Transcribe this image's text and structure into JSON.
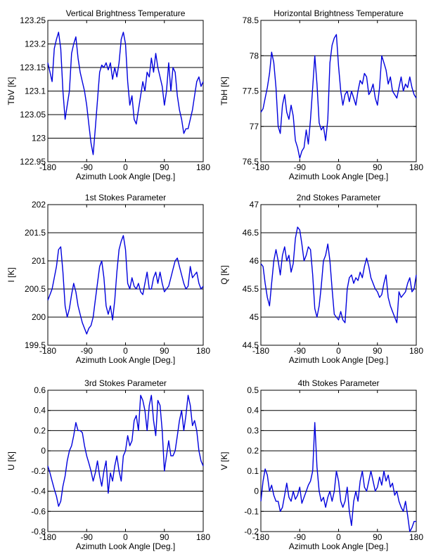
{
  "x_ticks": [
    "-180",
    "-90",
    "0",
    "90",
    "180"
  ],
  "line_color": "#0000dd",
  "chart_data": [
    {
      "type": "line",
      "title": "Vertical Brightness Temperature",
      "xlabel": "Azimuth Look Angle [Deg.]",
      "ylabel": "TbV [K]",
      "xlim": [
        -180,
        180
      ],
      "ylim": [
        122.95,
        123.25
      ],
      "yticks": [
        122.95,
        123,
        123.05,
        123.1,
        123.15,
        123.2,
        123.25
      ],
      "ytick_labels": [
        "122.95",
        "123",
        "123.05",
        "123.1",
        "123.15",
        "123.2",
        "123.25"
      ],
      "grid": "horizontal",
      "x": [
        -180,
        -175,
        -170,
        -165,
        -160,
        -155,
        -150,
        -145,
        -140,
        -135,
        -130,
        -125,
        -120,
        -115,
        -110,
        -105,
        -100,
        -95,
        -90,
        -85,
        -80,
        -75,
        -70,
        -65,
        -60,
        -55,
        -50,
        -45,
        -40,
        -35,
        -30,
        -25,
        -20,
        -15,
        -10,
        -5,
        0,
        5,
        10,
        15,
        20,
        25,
        30,
        35,
        40,
        45,
        50,
        55,
        60,
        65,
        70,
        75,
        80,
        85,
        90,
        95,
        100,
        105,
        110,
        115,
        120,
        125,
        130,
        135,
        140,
        145,
        150,
        155,
        160,
        165,
        170,
        175,
        180
      ],
      "y": [
        123.16,
        123.14,
        123.12,
        123.19,
        123.21,
        123.225,
        123.19,
        123.1,
        123.04,
        123.07,
        123.1,
        123.18,
        123.2,
        123.215,
        123.17,
        123.14,
        123.12,
        123.1,
        123.07,
        123.03,
        122.99,
        122.965,
        123.02,
        123.08,
        123.14,
        123.155,
        123.15,
        123.16,
        123.145,
        123.16,
        123.125,
        123.15,
        123.13,
        123.16,
        123.21,
        123.225,
        123.2,
        123.12,
        123.07,
        123.09,
        123.04,
        123.03,
        123.06,
        123.09,
        123.12,
        123.1,
        123.14,
        123.13,
        123.17,
        123.14,
        123.18,
        123.15,
        123.13,
        123.11,
        123.07,
        123.1,
        123.16,
        123.1,
        123.15,
        123.14,
        123.09,
        123.06,
        123.04,
        123.01,
        123.02,
        123.02,
        123.04,
        123.06,
        123.09,
        123.12,
        123.13,
        123.11,
        123.12
      ],
      "series": [
        {
          "color": "#0000dd"
        }
      ]
    },
    {
      "type": "line",
      "title": "Horizontal Brightness Temperature",
      "xlabel": "Azimuth Look Angle [Deg.]",
      "ylabel": "TbH [K]",
      "xlim": [
        -180,
        180
      ],
      "ylim": [
        76.5,
        78.5
      ],
      "yticks": [
        76.5,
        77,
        77.5,
        78,
        78.5
      ],
      "ytick_labels": [
        "76.5",
        "77",
        "77.5",
        "78",
        "78.5"
      ],
      "grid": "horizontal",
      "x": [
        -180,
        -175,
        -170,
        -165,
        -160,
        -155,
        -150,
        -145,
        -140,
        -135,
        -130,
        -125,
        -120,
        -115,
        -110,
        -105,
        -100,
        -95,
        -90,
        -85,
        -80,
        -75,
        -70,
        -65,
        -60,
        -55,
        -50,
        -45,
        -40,
        -35,
        -30,
        -25,
        -20,
        -15,
        -10,
        -5,
        0,
        5,
        10,
        15,
        20,
        25,
        30,
        35,
        40,
        45,
        50,
        55,
        60,
        65,
        70,
        75,
        80,
        85,
        90,
        95,
        100,
        105,
        110,
        115,
        120,
        125,
        130,
        135,
        140,
        145,
        150,
        155,
        160,
        165,
        170,
        175,
        180
      ],
      "y": [
        77.2,
        77.25,
        77.4,
        77.55,
        77.75,
        78.05,
        77.9,
        77.55,
        77.0,
        76.9,
        77.3,
        77.45,
        77.2,
        77.1,
        77.3,
        77.15,
        76.8,
        76.7,
        76.55,
        76.65,
        76.7,
        76.95,
        76.75,
        77.1,
        77.55,
        78.0,
        77.6,
        77.05,
        76.95,
        77.0,
        76.8,
        77.1,
        77.9,
        78.15,
        78.25,
        78.3,
        77.85,
        77.5,
        77.3,
        77.45,
        77.5,
        77.35,
        77.5,
        77.4,
        77.3,
        77.5,
        77.65,
        77.6,
        77.75,
        77.7,
        77.45,
        77.5,
        77.6,
        77.4,
        77.3,
        77.55,
        78.0,
        77.9,
        77.8,
        77.6,
        77.7,
        77.5,
        77.45,
        77.4,
        77.55,
        77.7,
        77.5,
        77.6,
        77.55,
        77.7,
        77.55,
        77.45,
        77.4
      ],
      "series": [
        {
          "color": "#0000dd"
        }
      ]
    },
    {
      "type": "line",
      "title": "1st Stokes Parameter",
      "xlabel": "Azimuth Look Angle [Deg.]",
      "ylabel": "I [K]",
      "xlim": [
        -180,
        180
      ],
      "ylim": [
        199.5,
        202
      ],
      "yticks": [
        199.5,
        200,
        200.5,
        201,
        201.5,
        202
      ],
      "ytick_labels": [
        "199.5",
        "200",
        "200.5",
        "201",
        "201.5",
        "202"
      ],
      "grid": "horizontal",
      "x": [
        -180,
        -175,
        -170,
        -165,
        -160,
        -155,
        -150,
        -145,
        -140,
        -135,
        -130,
        -125,
        -120,
        -115,
        -110,
        -105,
        -100,
        -95,
        -90,
        -85,
        -80,
        -75,
        -70,
        -65,
        -60,
        -55,
        -50,
        -45,
        -40,
        -35,
        -30,
        -25,
        -20,
        -15,
        -10,
        -5,
        0,
        5,
        10,
        15,
        20,
        25,
        30,
        35,
        40,
        45,
        50,
        55,
        60,
        65,
        70,
        75,
        80,
        85,
        90,
        95,
        100,
        105,
        110,
        115,
        120,
        125,
        130,
        135,
        140,
        145,
        150,
        155,
        160,
        165,
        170,
        175,
        180
      ],
      "y": [
        200.3,
        200.4,
        200.5,
        200.7,
        200.9,
        201.2,
        201.25,
        200.8,
        200.2,
        200.0,
        200.15,
        200.4,
        200.6,
        200.45,
        200.2,
        200.05,
        199.9,
        199.8,
        199.7,
        199.8,
        199.85,
        200.0,
        200.3,
        200.6,
        200.9,
        201.0,
        200.7,
        200.2,
        200.05,
        200.2,
        199.95,
        200.3,
        200.8,
        201.2,
        201.35,
        201.45,
        201.2,
        200.6,
        200.5,
        200.7,
        200.55,
        200.5,
        200.6,
        200.45,
        200.4,
        200.6,
        200.8,
        200.5,
        200.5,
        200.7,
        200.8,
        200.6,
        200.8,
        200.6,
        200.45,
        200.5,
        200.55,
        200.7,
        200.85,
        201.0,
        201.05,
        200.9,
        200.75,
        200.6,
        200.5,
        200.55,
        200.9,
        200.7,
        200.75,
        200.8,
        200.6,
        200.5,
        200.55
      ],
      "series": [
        {
          "color": "#0000dd"
        }
      ]
    },
    {
      "type": "line",
      "title": "2nd Stokes Parameter",
      "xlabel": "Azimuth Look Angle [Deg.]",
      "ylabel": "Q [K]",
      "xlim": [
        -180,
        180
      ],
      "ylim": [
        44.5,
        47
      ],
      "yticks": [
        44.5,
        45,
        45.5,
        46,
        46.5,
        47
      ],
      "ytick_labels": [
        "44.5",
        "45",
        "45.5",
        "46",
        "46.5",
        "47"
      ],
      "grid": "horizontal",
      "x": [
        -180,
        -175,
        -170,
        -165,
        -160,
        -155,
        -150,
        -145,
        -140,
        -135,
        -130,
        -125,
        -120,
        -115,
        -110,
        -105,
        -100,
        -95,
        -90,
        -85,
        -80,
        -75,
        -70,
        -65,
        -60,
        -55,
        -50,
        -45,
        -40,
        -35,
        -30,
        -25,
        -20,
        -15,
        -10,
        -5,
        0,
        5,
        10,
        15,
        20,
        25,
        30,
        35,
        40,
        45,
        50,
        55,
        60,
        65,
        70,
        75,
        80,
        85,
        90,
        95,
        100,
        105,
        110,
        115,
        120,
        125,
        130,
        135,
        140,
        145,
        150,
        155,
        160,
        165,
        170,
        175,
        180
      ],
      "y": [
        45.95,
        45.9,
        45.6,
        45.35,
        45.2,
        45.6,
        46.0,
        46.2,
        46.0,
        45.75,
        46.1,
        46.25,
        46.0,
        46.1,
        45.8,
        45.95,
        46.4,
        46.6,
        46.55,
        46.3,
        46.0,
        46.1,
        46.25,
        46.2,
        45.75,
        45.15,
        45.0,
        45.2,
        45.55,
        46.0,
        46.1,
        46.3,
        46.0,
        45.5,
        45.05,
        45.0,
        44.95,
        45.1,
        44.95,
        44.9,
        45.5,
        45.7,
        45.75,
        45.6,
        45.7,
        45.65,
        45.8,
        45.7,
        45.9,
        46.05,
        45.9,
        45.7,
        45.6,
        45.5,
        45.45,
        45.35,
        45.4,
        45.6,
        45.75,
        45.35,
        45.2,
        45.1,
        45.0,
        44.9,
        45.45,
        45.35,
        45.4,
        45.45,
        45.6,
        45.7,
        45.45,
        45.5,
        45.75
      ],
      "series": [
        {
          "color": "#0000dd"
        }
      ]
    },
    {
      "type": "line",
      "title": "3rd Stokes Parameter",
      "xlabel": "Azimuth Look Angle [Deg.]",
      "ylabel": "U [K]",
      "xlim": [
        -180,
        180
      ],
      "ylim": [
        -0.8,
        0.6
      ],
      "yticks": [
        -0.8,
        -0.6,
        -0.4,
        -0.2,
        0,
        0.2,
        0.4,
        0.6
      ],
      "ytick_labels": [
        "-0.8",
        "-0.6",
        "-0.4",
        "-0.2",
        "0",
        "0.2",
        "0.4",
        "0.6"
      ],
      "grid": "horizontal",
      "x": [
        -180,
        -175,
        -170,
        -165,
        -160,
        -155,
        -150,
        -145,
        -140,
        -135,
        -130,
        -125,
        -120,
        -115,
        -110,
        -105,
        -100,
        -95,
        -90,
        -85,
        -80,
        -75,
        -70,
        -65,
        -60,
        -55,
        -50,
        -45,
        -40,
        -35,
        -30,
        -25,
        -20,
        -15,
        -10,
        -5,
        0,
        5,
        10,
        15,
        20,
        25,
        30,
        35,
        40,
        45,
        50,
        55,
        60,
        65,
        70,
        75,
        80,
        85,
        90,
        95,
        100,
        105,
        110,
        115,
        120,
        125,
        130,
        135,
        140,
        145,
        150,
        155,
        160,
        165,
        170,
        175,
        180
      ],
      "y": [
        -0.15,
        -0.22,
        -0.3,
        -0.38,
        -0.45,
        -0.55,
        -0.5,
        -0.35,
        -0.25,
        -0.1,
        0.0,
        0.05,
        0.15,
        0.28,
        0.2,
        0.2,
        0.18,
        0.05,
        -0.05,
        -0.12,
        -0.2,
        -0.3,
        -0.22,
        -0.1,
        -0.25,
        -0.35,
        -0.2,
        -0.1,
        -0.42,
        -0.22,
        -0.3,
        -0.15,
        -0.05,
        -0.2,
        -0.3,
        -0.05,
        0.0,
        0.15,
        0.05,
        0.1,
        0.3,
        0.35,
        0.2,
        0.55,
        0.5,
        0.4,
        0.2,
        0.45,
        0.55,
        0.3,
        0.15,
        0.5,
        0.45,
        0.2,
        -0.2,
        -0.05,
        0.1,
        -0.05,
        -0.05,
        0.0,
        0.15,
        0.3,
        0.4,
        0.2,
        0.35,
        0.55,
        0.45,
        0.25,
        0.3,
        0.2,
        0.0,
        -0.1,
        -0.15
      ],
      "series": [
        {
          "color": "#0000dd"
        }
      ]
    },
    {
      "type": "line",
      "title": "4th Stokes Parameter",
      "xlabel": "Azimuth Look Angle [Deg.]",
      "ylabel": "V [K]",
      "xlim": [
        -180,
        180
      ],
      "ylim": [
        -0.2,
        0.5
      ],
      "yticks": [
        -0.2,
        -0.1,
        0,
        0.1,
        0.2,
        0.3,
        0.4,
        0.5
      ],
      "ytick_labels": [
        "-0.2",
        "-0.1",
        "0",
        "0.1",
        "0.2",
        "0.3",
        "0.4",
        "0.5"
      ],
      "grid": "horizontal",
      "x": [
        -180,
        -175,
        -170,
        -165,
        -160,
        -155,
        -150,
        -145,
        -140,
        -135,
        -130,
        -125,
        -120,
        -115,
        -110,
        -105,
        -100,
        -95,
        -90,
        -85,
        -80,
        -75,
        -70,
        -65,
        -60,
        -55,
        -50,
        -45,
        -40,
        -35,
        -30,
        -25,
        -20,
        -15,
        -10,
        -5,
        0,
        5,
        10,
        15,
        20,
        25,
        30,
        35,
        40,
        45,
        50,
        55,
        60,
        65,
        70,
        75,
        80,
        85,
        90,
        95,
        100,
        105,
        110,
        115,
        120,
        125,
        130,
        135,
        140,
        145,
        150,
        155,
        160,
        165,
        170,
        175,
        180
      ],
      "y": [
        -0.05,
        0.05,
        0.11,
        0.08,
        0.0,
        0.03,
        -0.02,
        -0.05,
        -0.05,
        -0.1,
        -0.08,
        -0.02,
        0.04,
        -0.03,
        -0.05,
        0.0,
        -0.04,
        -0.02,
        0.02,
        -0.06,
        -0.03,
        0.0,
        0.03,
        0.05,
        0.1,
        0.34,
        0.12,
        0.0,
        -0.05,
        -0.03,
        -0.08,
        -0.03,
        0.0,
        -0.05,
        0.0,
        0.1,
        0.05,
        -0.05,
        -0.08,
        -0.05,
        0.02,
        -0.1,
        -0.17,
        -0.05,
        0.0,
        -0.05,
        0.05,
        0.1,
        0.02,
        0.0,
        0.05,
        0.1,
        0.05,
        0.0,
        0.02,
        0.07,
        0.03,
        0.1,
        0.05,
        0.08,
        0.02,
        0.04,
        -0.02,
        0.0,
        -0.05,
        -0.08,
        -0.1,
        -0.05,
        -0.12,
        -0.2,
        -0.18,
        -0.15,
        -0.15
      ],
      "series": [
        {
          "color": "#0000dd"
        }
      ]
    }
  ]
}
